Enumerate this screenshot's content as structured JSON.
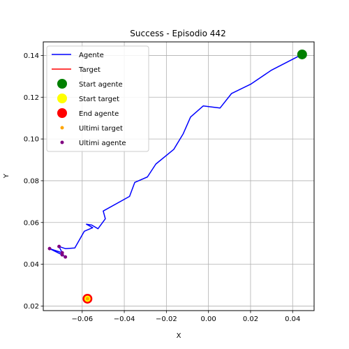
{
  "chart_data": {
    "type": "line",
    "title": "Success - Episodio 442",
    "xlabel": "X",
    "ylabel": "Y",
    "xlim": [
      -0.0785,
      0.0502
    ],
    "ylim": [
      0.0178,
      0.1465
    ],
    "xticks": [
      -0.06,
      -0.04,
      -0.02,
      0.0,
      0.02,
      0.04
    ],
    "xtick_labels": [
      "−0.06",
      "−0.04",
      "−0.02",
      "0.00",
      "0.02",
      "0.04"
    ],
    "yticks": [
      0.02,
      0.04,
      0.06,
      0.08,
      0.1,
      0.12,
      0.14
    ],
    "ytick_labels": [
      "0.02",
      "0.04",
      "0.06",
      "0.08",
      "0.10",
      "0.12",
      "0.14"
    ],
    "grid": true,
    "legend_position": "upper-left",
    "legend": [
      {
        "label": "Agente",
        "kind": "line",
        "color": "#0000ff"
      },
      {
        "label": "Target",
        "kind": "line",
        "color": "#ff0000"
      },
      {
        "label": "Start agente",
        "kind": "big-dot",
        "color": "#008000"
      },
      {
        "label": "Start target",
        "kind": "big-dot",
        "color": "#ffff00"
      },
      {
        "label": "End agente",
        "kind": "big-dot",
        "color": "#ff0000"
      },
      {
        "label": "Ultimi target",
        "kind": "small-dot",
        "color": "#ffa500"
      },
      {
        "label": "Ultimi agente",
        "kind": "small-dot",
        "color": "#800080"
      }
    ],
    "series": [
      {
        "name": "Agente",
        "color": "#0000ff",
        "points": [
          [
            0.0445,
            0.1405
          ],
          [
            0.03,
            0.133
          ],
          [
            0.02,
            0.1262
          ],
          [
            0.011,
            0.1218
          ],
          [
            0.0055,
            0.1148
          ],
          [
            -0.0025,
            0.1158
          ],
          [
            -0.0085,
            0.1105
          ],
          [
            -0.012,
            0.1025
          ],
          [
            -0.0165,
            0.095
          ],
          [
            -0.025,
            0.088
          ],
          [
            -0.029,
            0.0818
          ],
          [
            -0.035,
            0.0792
          ],
          [
            -0.0375,
            0.0725
          ],
          [
            -0.05,
            0.0655
          ],
          [
            -0.049,
            0.0618
          ],
          [
            -0.0525,
            0.057
          ],
          [
            -0.0555,
            0.0588
          ],
          [
            -0.058,
            0.0592
          ],
          [
            -0.055,
            0.0575
          ],
          [
            -0.059,
            0.0558
          ],
          [
            -0.0635,
            0.0478
          ],
          [
            -0.068,
            0.0475
          ],
          [
            -0.071,
            0.0485
          ],
          [
            -0.0695,
            0.0455
          ],
          [
            -0.0755,
            0.0475
          ],
          [
            -0.0695,
            0.0445
          ],
          [
            -0.068,
            0.0435
          ]
        ]
      },
      {
        "name": "Target",
        "color": "#ff0000",
        "points": [
          [
            -0.0575,
            0.0235
          ]
        ]
      }
    ],
    "start_agente": [
      0.0445,
      0.1405
    ],
    "start_target": [
      -0.0575,
      0.0235
    ],
    "end_agente": [
      -0.0575,
      0.0235
    ],
    "ultimi_target": [
      [
        -0.0575,
        0.0235
      ]
    ],
    "ultimi_agente": [
      [
        -0.0755,
        0.0475
      ],
      [
        -0.071,
        0.0485
      ],
      [
        -0.0695,
        0.0455
      ],
      [
        -0.0695,
        0.0445
      ],
      [
        -0.068,
        0.0435
      ]
    ]
  }
}
